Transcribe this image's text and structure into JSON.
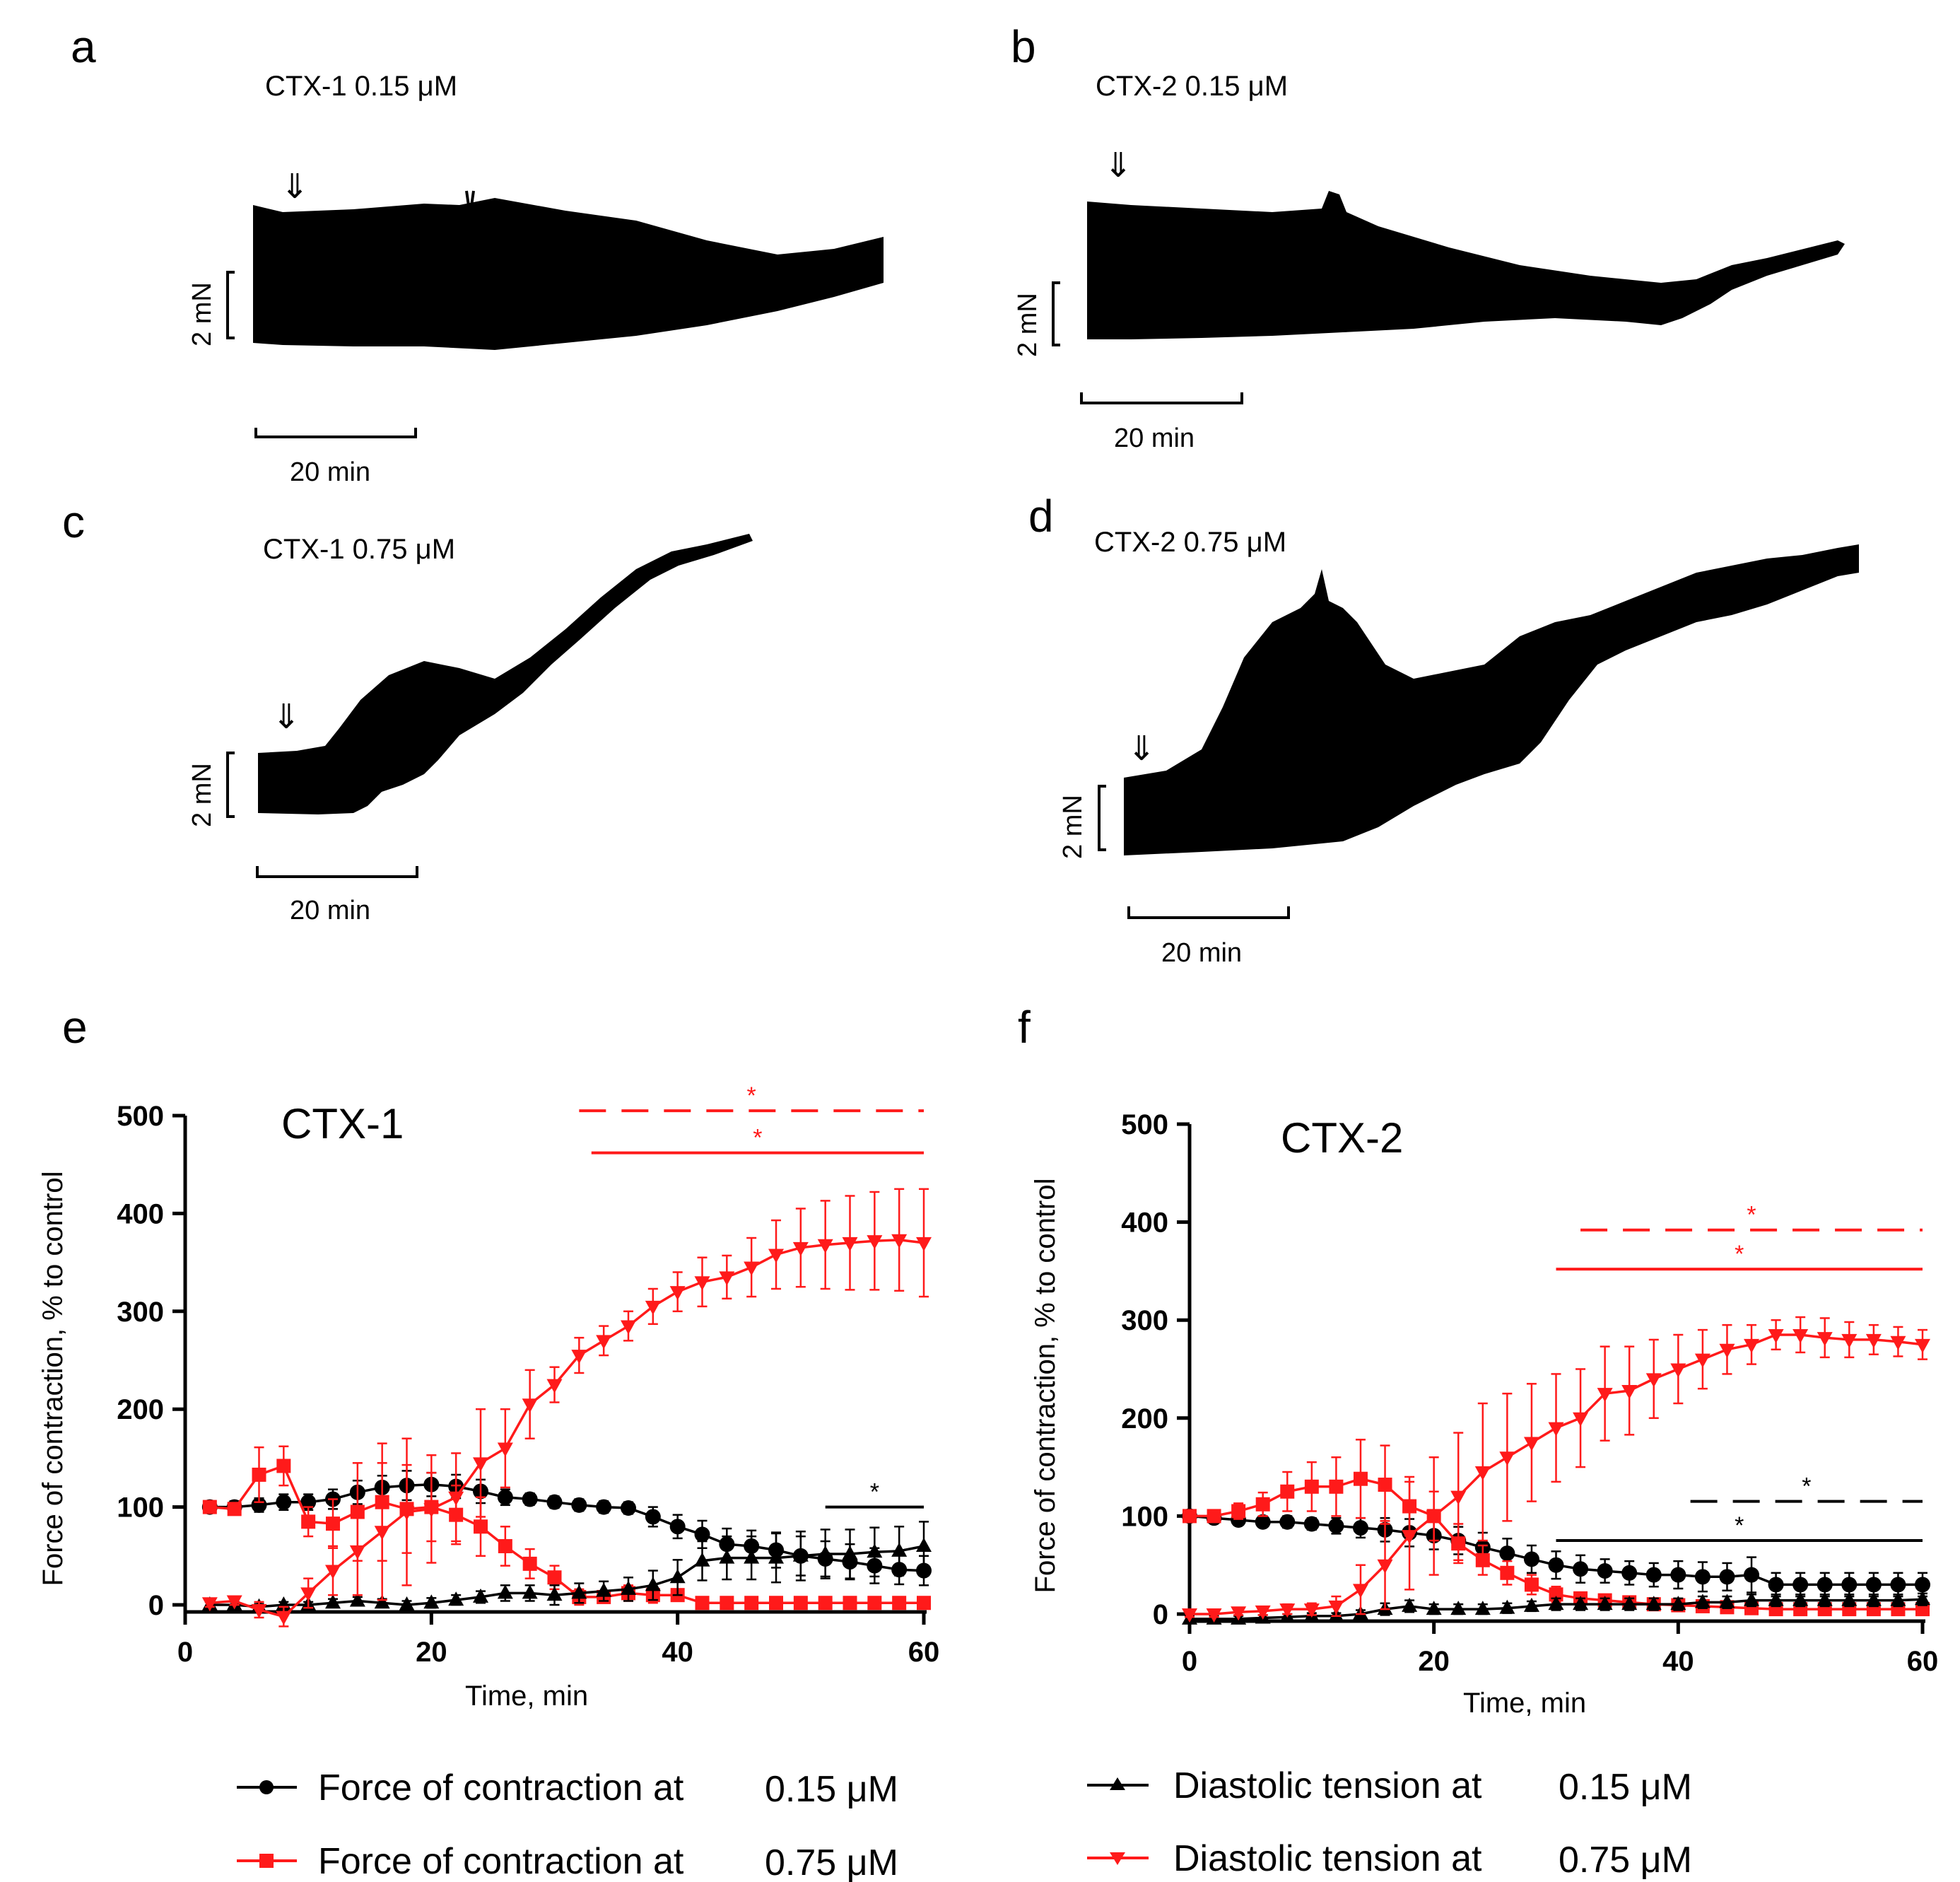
{
  "traces": [
    {
      "panel": "a",
      "title": "CTX-1 0.15 μM",
      "scale_force": "2 mN",
      "scale_time": "20 min"
    },
    {
      "panel": "b",
      "title": "CTX-2 0.15 μM",
      "scale_force": "2 mN",
      "scale_time": "20 min"
    },
    {
      "panel": "c",
      "title": "CTX-1 0.75 μM",
      "scale_force": "2 mN",
      "scale_time": "20 min"
    },
    {
      "panel": "d",
      "title": "CTX-2 0.75 μM",
      "scale_force": "2 mN",
      "scale_time": "20 min"
    }
  ],
  "legend": {
    "fc_015": "Force of contraction at",
    "fc_015_conc": "0.15 μM",
    "fc_075": "Force of contraction at",
    "fc_075_conc": "0.75 μM",
    "dt_015": "Diastolic tension at",
    "dt_015_conc": "0.15 μM",
    "dt_075": "Diastolic tension at",
    "dt_075_conc": "0.75 μM"
  },
  "colors": {
    "black": "#000000",
    "red": "#ff1a1a"
  },
  "chart_data": [
    {
      "panel": "e",
      "type": "line",
      "title": "CTX-1",
      "xlabel": "Time, min",
      "ylabel": "Force of contraction, % to control",
      "xlim": [
        0,
        60
      ],
      "ylim": [
        0,
        500
      ],
      "xticks": [
        0,
        20,
        40,
        60
      ],
      "yticks": [
        0,
        100,
        200,
        300,
        400,
        500
      ],
      "x": [
        2,
        4,
        6,
        8,
        10,
        12,
        14,
        16,
        18,
        20,
        22,
        24,
        26,
        28,
        30,
        32,
        34,
        36,
        38,
        40,
        42,
        44,
        46,
        48,
        50,
        52,
        54,
        56,
        58,
        60
      ],
      "series": [
        {
          "name": "Force of contraction at 0.15 μM",
          "color": "#000000",
          "marker": "circle",
          "values": [
            100,
            100,
            102,
            105,
            105,
            108,
            115,
            120,
            122,
            123,
            121,
            116,
            110,
            108,
            105,
            102,
            100,
            99,
            90,
            80,
            72,
            62,
            60,
            56,
            50,
            47,
            44,
            40,
            36,
            35
          ],
          "errors": [
            6,
            6,
            7,
            8,
            8,
            10,
            12,
            12,
            15,
            12,
            12,
            12,
            8,
            6,
            6,
            6,
            6,
            6,
            10,
            12,
            14,
            16,
            16,
            18,
            20,
            18,
            18,
            18,
            15,
            15
          ]
        },
        {
          "name": "Force of contraction at 0.75 μM",
          "color": "#ff1a1a",
          "marker": "square",
          "values": [
            100,
            98,
            133,
            142,
            85,
            83,
            95,
            105,
            98,
            100,
            92,
            80,
            60,
            42,
            28,
            8,
            8,
            12,
            10,
            10,
            2,
            2,
            2,
            2,
            2,
            2,
            2,
            2,
            2,
            2
          ],
          "errors": [
            5,
            6,
            28,
            20,
            15,
            25,
            50,
            60,
            45,
            35,
            30,
            30,
            20,
            15,
            12,
            8,
            6,
            8,
            8,
            6,
            3,
            3,
            3,
            3,
            3,
            3,
            3,
            3,
            3,
            3
          ]
        },
        {
          "name": "Diastolic tension at 0.15 μM",
          "color": "#000000",
          "marker": "triangle-up",
          "values": [
            0,
            0,
            -2,
            0,
            0,
            2,
            4,
            2,
            0,
            2,
            5,
            8,
            12,
            12,
            10,
            12,
            14,
            16,
            20,
            28,
            45,
            48,
            48,
            48,
            50,
            52,
            52,
            54,
            55,
            60
          ],
          "errors": [
            3,
            3,
            3,
            3,
            3,
            4,
            4,
            4,
            4,
            5,
            5,
            6,
            8,
            8,
            10,
            10,
            10,
            12,
            15,
            18,
            20,
            22,
            22,
            25,
            25,
            25,
            25,
            25,
            25,
            25
          ]
        },
        {
          "name": "Diastolic tension at 0.75 μM",
          "color": "#ff1a1a",
          "marker": "triangle-down",
          "values": [
            2,
            4,
            -5,
            -12,
            12,
            35,
            55,
            75,
            95,
            98,
            110,
            145,
            160,
            205,
            225,
            255,
            270,
            285,
            305,
            320,
            330,
            335,
            345,
            358,
            365,
            368,
            370,
            372,
            373,
            370
          ],
          "errors": [
            4,
            4,
            8,
            10,
            15,
            25,
            45,
            70,
            75,
            55,
            45,
            55,
            40,
            35,
            18,
            18,
            15,
            15,
            18,
            20,
            25,
            22,
            30,
            35,
            40,
            45,
            48,
            50,
            52,
            55
          ]
        }
      ],
      "significance": [
        {
          "style": "dashed",
          "color": "#ff1a1a",
          "x_range": [
            32,
            60
          ],
          "y": 505,
          "label": "*"
        },
        {
          "style": "solid",
          "color": "#ff1a1a",
          "x_range": [
            33,
            60
          ],
          "y": 462,
          "label": "*"
        },
        {
          "style": "solid",
          "color": "#000000",
          "x_range": [
            52,
            60
          ],
          "y": 100,
          "label": "*"
        }
      ]
    },
    {
      "panel": "f",
      "type": "line",
      "title": "CTX-2",
      "xlabel": "Time, min",
      "ylabel": "Force of contraction, % to control",
      "xlim": [
        0,
        60
      ],
      "ylim": [
        0,
        500
      ],
      "xticks": [
        0,
        20,
        40,
        60
      ],
      "yticks": [
        0,
        100,
        200,
        300,
        400,
        500
      ],
      "x": [
        0,
        2,
        4,
        6,
        8,
        10,
        12,
        14,
        16,
        18,
        20,
        22,
        24,
        26,
        28,
        30,
        32,
        34,
        36,
        38,
        40,
        42,
        44,
        46,
        48,
        50,
        52,
        54,
        56,
        58,
        60
      ],
      "series": [
        {
          "name": "Force of contraction at 0.15 μM",
          "color": "#000000",
          "marker": "circle",
          "values": [
            100,
            98,
            96,
            94,
            94,
            92,
            90,
            88,
            86,
            83,
            80,
            75,
            68,
            62,
            56,
            50,
            46,
            44,
            42,
            40,
            40,
            38,
            38,
            40,
            30,
            30,
            30,
            30,
            30,
            30,
            30
          ],
          "errors": [
            4,
            4,
            5,
            5,
            6,
            6,
            8,
            10,
            12,
            14,
            14,
            14,
            15,
            15,
            14,
            14,
            14,
            12,
            12,
            12,
            14,
            15,
            14,
            18,
            12,
            12,
            12,
            12,
            12,
            12,
            12
          ]
        },
        {
          "name": "Force of contraction at 0.75 μM",
          "color": "#ff1a1a",
          "marker": "square",
          "values": [
            100,
            100,
            105,
            112,
            125,
            130,
            130,
            138,
            132,
            110,
            100,
            72,
            55,
            42,
            30,
            20,
            16,
            14,
            12,
            10,
            9,
            8,
            7,
            6,
            5,
            5,
            5,
            5,
            5,
            5,
            5
          ],
          "errors": [
            5,
            5,
            8,
            12,
            20,
            25,
            30,
            40,
            40,
            30,
            25,
            20,
            15,
            12,
            10,
            8,
            6,
            6,
            5,
            5,
            5,
            5,
            5,
            4,
            4,
            4,
            4,
            4,
            4,
            4,
            4
          ]
        },
        {
          "name": "Diastolic tension at 0.15 μM",
          "color": "#000000",
          "marker": "triangle-up",
          "values": [
            -5,
            -5,
            -5,
            -4,
            -3,
            -2,
            -2,
            0,
            5,
            8,
            5,
            5,
            5,
            6,
            8,
            10,
            10,
            10,
            10,
            10,
            10,
            12,
            12,
            14,
            14,
            14,
            14,
            14,
            14,
            14,
            15
          ],
          "errors": [
            3,
            3,
            3,
            3,
            3,
            3,
            3,
            4,
            6,
            6,
            5,
            5,
            5,
            5,
            5,
            6,
            6,
            6,
            6,
            6,
            6,
            6,
            6,
            6,
            6,
            6,
            6,
            6,
            6,
            6,
            6
          ]
        },
        {
          "name": "Diastolic tension at 0.75 μM",
          "color": "#ff1a1a",
          "marker": "triangle-down",
          "values": [
            0,
            0,
            2,
            3,
            5,
            5,
            8,
            25,
            50,
            80,
            100,
            120,
            145,
            160,
            175,
            190,
            200,
            225,
            228,
            240,
            250,
            260,
            270,
            275,
            285,
            285,
            282,
            280,
            280,
            278,
            275
          ],
          "errors": [
            3,
            3,
            3,
            4,
            5,
            6,
            10,
            25,
            45,
            55,
            60,
            65,
            70,
            65,
            60,
            55,
            50,
            48,
            45,
            40,
            35,
            30,
            25,
            20,
            15,
            18,
            20,
            18,
            15,
            15,
            15
          ]
        }
      ],
      "significance": [
        {
          "style": "dashed",
          "color": "#ff1a1a",
          "x_range": [
            32,
            60
          ],
          "y": 392,
          "label": "*"
        },
        {
          "style": "solid",
          "color": "#ff1a1a",
          "x_range": [
            30,
            60
          ],
          "y": 352,
          "label": "*"
        },
        {
          "style": "dashed",
          "color": "#000000",
          "x_range": [
            41,
            60
          ],
          "y": 115,
          "label": "*"
        },
        {
          "style": "solid",
          "color": "#000000",
          "x_range": [
            30,
            60
          ],
          "y": 75,
          "label": "*"
        }
      ]
    }
  ]
}
